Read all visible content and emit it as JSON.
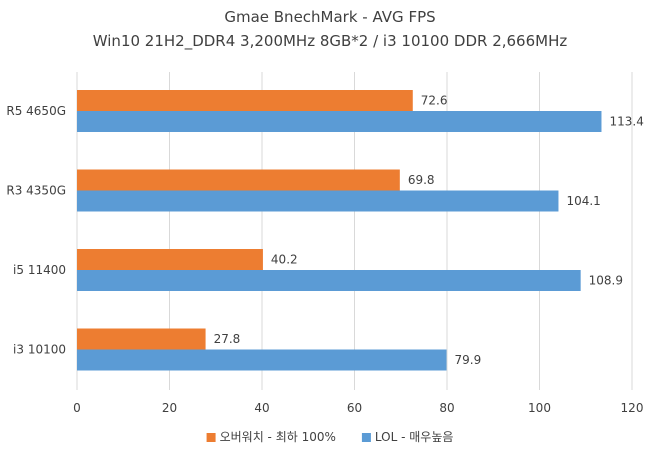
{
  "chart_data": {
    "type": "bar",
    "orientation": "horizontal",
    "title": "Gmae BnechMark - AVG FPS",
    "subtitle": "Win10 21H2_DDR4 3,200MHz 8GB*2 / i3 10100 DDR 2,666MHz",
    "categories": [
      "R5 4650G",
      "R3 4350G",
      "i5 11400",
      "i3 10100"
    ],
    "series": [
      {
        "name": "오버워치 - 최하 100%",
        "color": "#ed7d31",
        "values": [
          72.6,
          69.8,
          40.2,
          27.8
        ]
      },
      {
        "name": "LOL - 매우높음",
        "color": "#5b9bd5",
        "values": [
          113.4,
          104.1,
          108.9,
          79.9
        ]
      }
    ],
    "xlim": [
      0,
      120
    ],
    "xticks": [
      "0",
      "20",
      "40",
      "60",
      "80",
      "100",
      "120"
    ],
    "xlabel": "",
    "ylabel": "",
    "grid": true,
    "legend_position": "bottom"
  }
}
